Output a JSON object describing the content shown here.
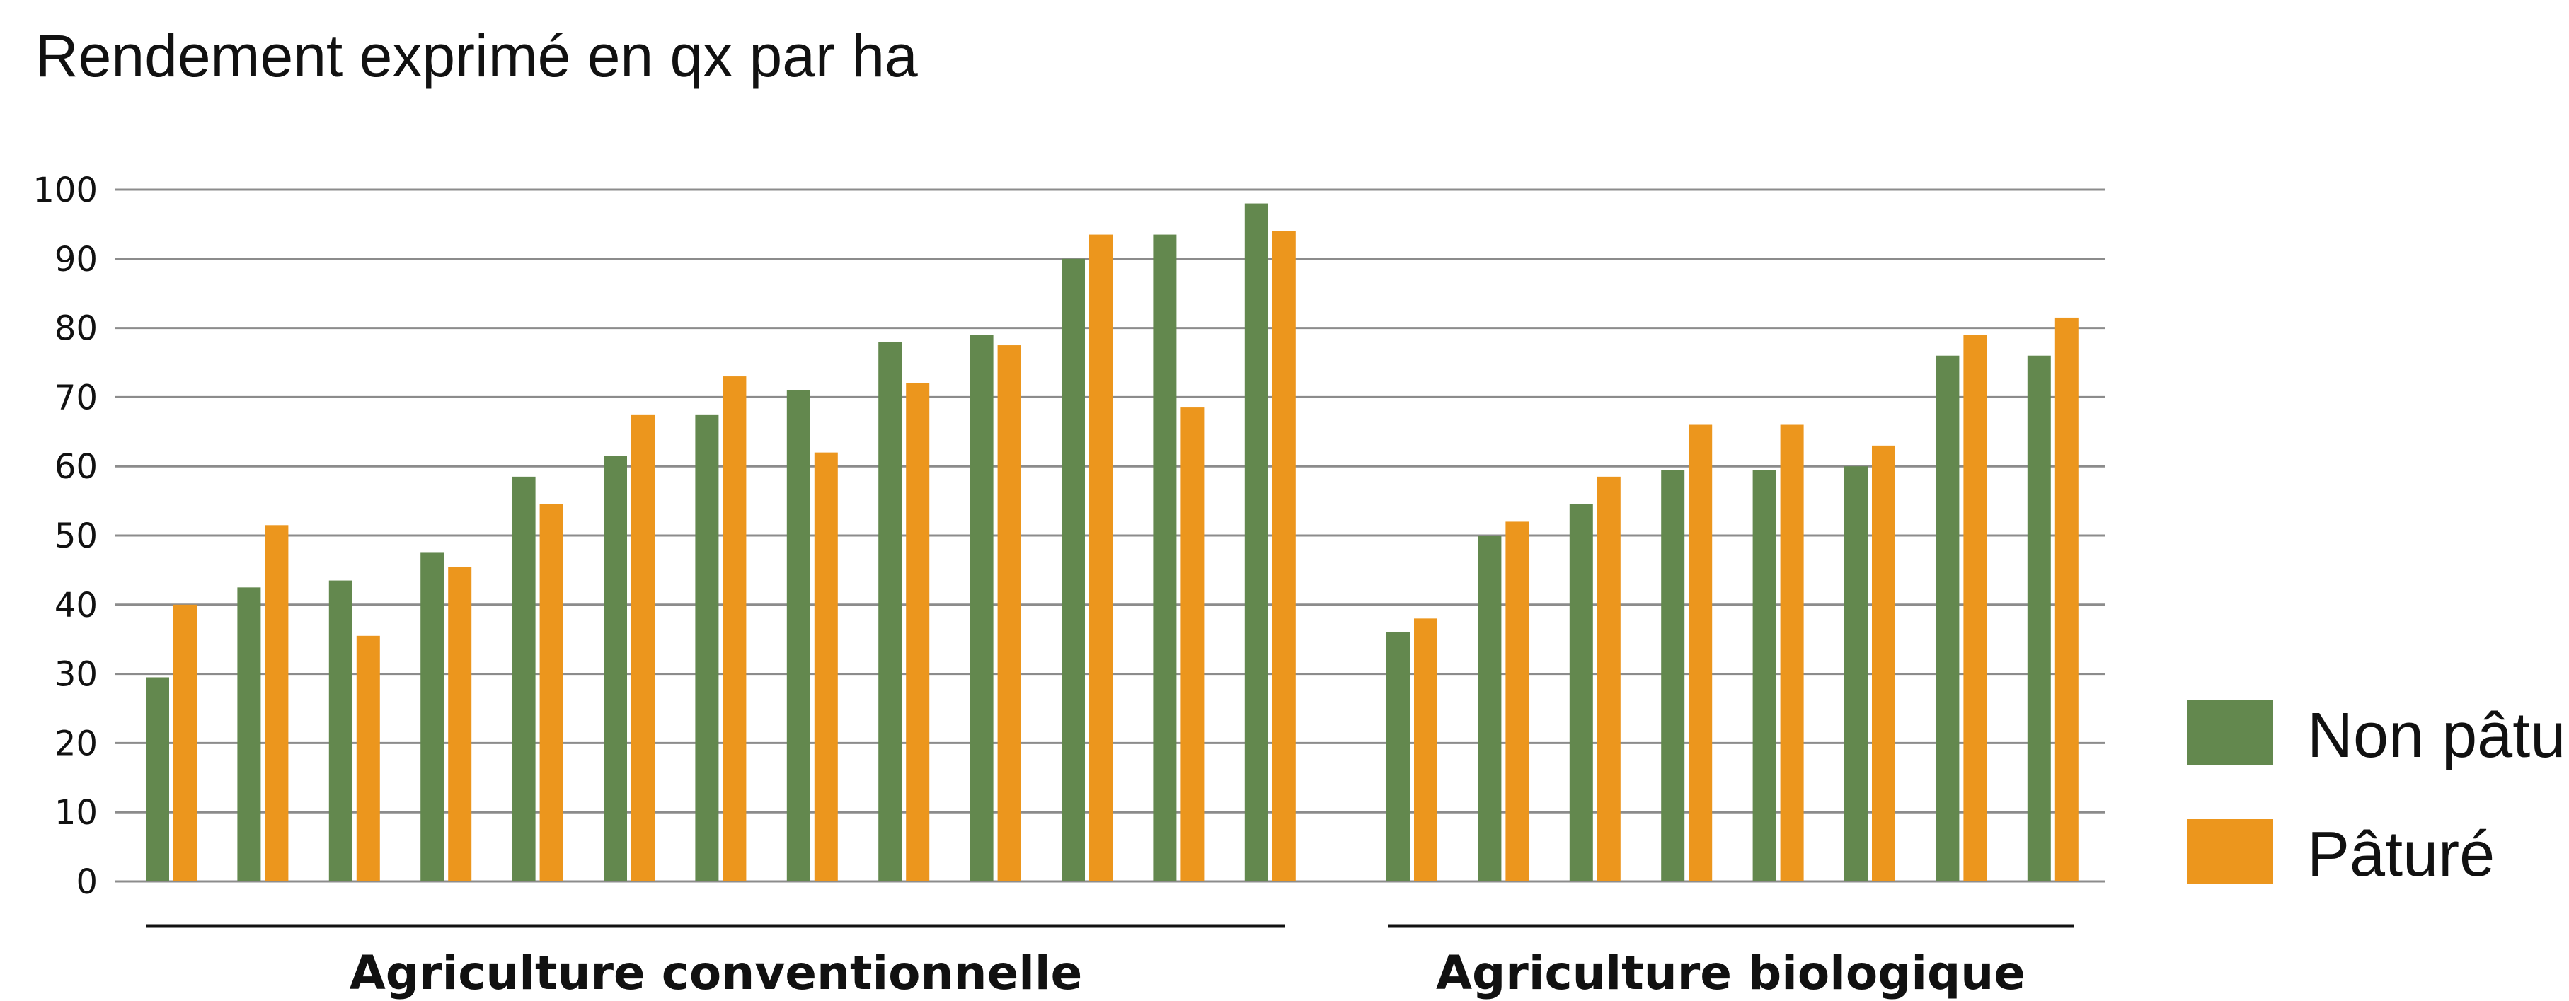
{
  "chart_data": {
    "type": "bar",
    "title": "Rendement exprimé en qx par ha",
    "xlabel": "",
    "ylabel": "",
    "ylim": [
      0,
      100
    ],
    "yticks": [
      0,
      10,
      20,
      30,
      40,
      50,
      60,
      70,
      80,
      90,
      100
    ],
    "grid": true,
    "legend_position": "right",
    "groups": [
      {
        "label": "Agriculture conventionnelle",
        "series": [
          {
            "name": "Non pâturé",
            "values": [
              29.5,
              42.5,
              43.5,
              47.5,
              58.5,
              61.5,
              67.5,
              71.0,
              78.0,
              79.0,
              90.0,
              93.5,
              98.0
            ]
          },
          {
            "name": "Pâturé",
            "values": [
              40.0,
              51.5,
              35.5,
              45.5,
              54.5,
              67.5,
              73.0,
              62.0,
              72.0,
              77.5,
              93.5,
              68.5,
              94.0
            ]
          }
        ]
      },
      {
        "label": "Agriculture biologique",
        "series": [
          {
            "name": "Non pâturé",
            "values": [
              36.0,
              50.0,
              54.5,
              59.5,
              59.5,
              60.0,
              76.0,
              76.0
            ]
          },
          {
            "name": "Pâturé",
            "values": [
              38.0,
              52.0,
              58.5,
              66.0,
              66.0,
              63.0,
              79.0,
              81.5
            ]
          }
        ]
      }
    ],
    "legend": [
      {
        "name": "Non pâturé",
        "color": "#63884e"
      },
      {
        "name": "Pâturé",
        "color": "#ec961d"
      }
    ]
  }
}
